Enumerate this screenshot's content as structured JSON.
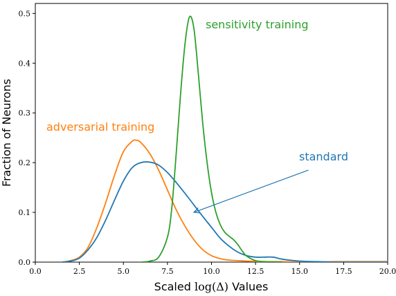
{
  "chart_data": {
    "type": "line",
    "xlabel_prefix": "Scaled ",
    "xlabel_math": "log(Δ)",
    "xlabel_suffix": " Values",
    "ylabel": "Fraction of Neurons",
    "xlim": [
      0,
      20
    ],
    "ylim": [
      0,
      0.52
    ],
    "xticks": [
      0,
      2.5,
      5,
      7.5,
      10,
      12.5,
      15,
      17.5,
      20
    ],
    "xtick_labels": [
      "0.0",
      "2.5",
      "5.0",
      "7.5",
      "10.0",
      "12.5",
      "15.0",
      "17.5",
      "20.0"
    ],
    "yticks": [
      0,
      0.1,
      0.2,
      0.3,
      0.4,
      0.5
    ],
    "ytick_labels": [
      "0.0",
      "0.1",
      "0.2",
      "0.3",
      "0.4",
      "0.5"
    ],
    "grid": false,
    "series": [
      {
        "name": "standard",
        "color": "#1f77b4",
        "x": [
          1.5,
          2.0,
          2.5,
          3.0,
          3.5,
          4.0,
          4.5,
          5.0,
          5.5,
          6.0,
          6.5,
          7.0,
          7.5,
          8.0,
          8.5,
          9.0,
          9.5,
          10.0,
          10.5,
          11.0,
          11.5,
          12.0,
          12.5,
          13.0,
          13.5,
          14.0,
          15.0,
          16.0,
          17.0,
          18.0,
          19.0,
          20.0
        ],
        "y": [
          0.0,
          0.002,
          0.008,
          0.025,
          0.05,
          0.085,
          0.125,
          0.163,
          0.19,
          0.2,
          0.201,
          0.195,
          0.18,
          0.16,
          0.138,
          0.115,
          0.092,
          0.07,
          0.048,
          0.032,
          0.02,
          0.013,
          0.01,
          0.01,
          0.01,
          0.006,
          0.002,
          0.001,
          0.0,
          0.0,
          0.0,
          0.0
        ]
      },
      {
        "name": "adversarial training",
        "color": "#ff7f0e",
        "x": [
          1.5,
          2.0,
          2.5,
          3.0,
          3.5,
          4.0,
          4.5,
          5.0,
          5.5,
          5.75,
          6.0,
          6.5,
          7.0,
          7.5,
          8.0,
          8.5,
          9.0,
          9.5,
          10.0,
          10.5,
          11.0,
          11.5,
          12.0,
          13.0,
          14.0,
          15.0,
          16.0,
          17.0,
          18.0,
          19.0,
          20.0
        ],
        "y": [
          0.0,
          0.003,
          0.01,
          0.03,
          0.07,
          0.12,
          0.175,
          0.222,
          0.243,
          0.245,
          0.24,
          0.218,
          0.185,
          0.145,
          0.105,
          0.072,
          0.045,
          0.025,
          0.013,
          0.007,
          0.004,
          0.003,
          0.002,
          0.001,
          0.001,
          0.0,
          0.0,
          0.001,
          0.001,
          0.001,
          0.001
        ]
      },
      {
        "name": "sensitivity training",
        "color": "#2ca02c",
        "x": [
          6.0,
          6.5,
          7.0,
          7.5,
          7.75,
          8.0,
          8.25,
          8.5,
          8.75,
          9.0,
          9.25,
          9.5,
          9.75,
          10.0,
          10.25,
          10.5,
          10.75,
          11.0,
          11.25,
          11.5,
          11.75,
          12.0,
          12.5,
          13.0,
          14.0
        ],
        "y": [
          0.0,
          0.002,
          0.01,
          0.05,
          0.11,
          0.22,
          0.34,
          0.44,
          0.493,
          0.47,
          0.38,
          0.28,
          0.2,
          0.14,
          0.1,
          0.075,
          0.06,
          0.052,
          0.045,
          0.035,
          0.022,
          0.012,
          0.003,
          0.001,
          0.0
        ]
      }
    ],
    "annotations": [
      {
        "text": "sensitivity training",
        "color": "#2ca02c"
      },
      {
        "text": "adversarial training",
        "color": "#ff7f0e"
      },
      {
        "text": "standard",
        "color": "#1f77b4",
        "arrow_to": [
          9.0,
          0.1
        ],
        "arrow_from": [
          15.5,
          0.185
        ]
      }
    ]
  }
}
